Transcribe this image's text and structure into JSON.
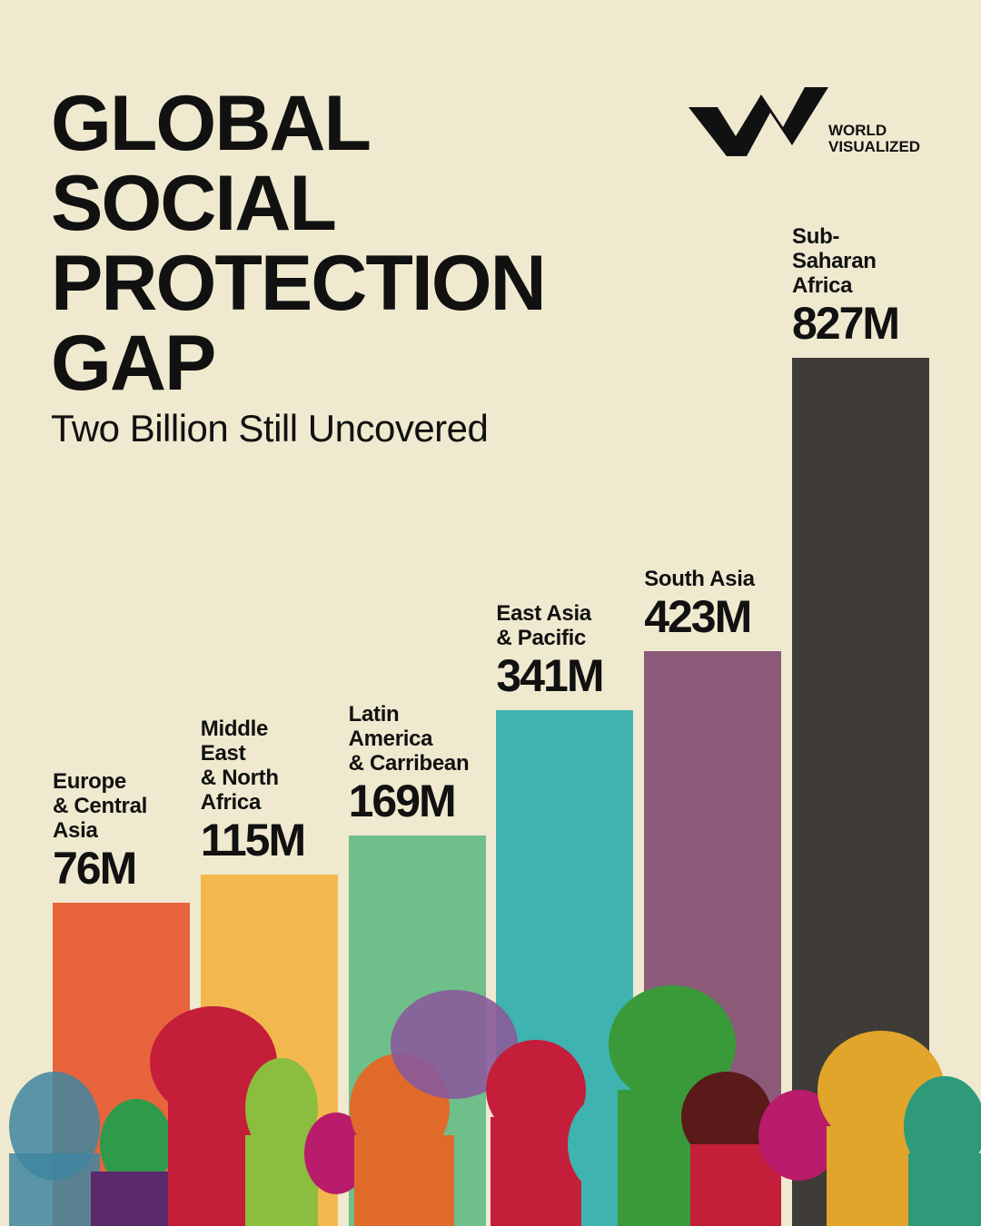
{
  "brand": "WORLD\nVISUALIZED",
  "chart_data": {
    "type": "bar",
    "title": "GLOBAL\nSOCIAL\nPROTECTION\nGAP",
    "subtitle": "Two Billion Still Uncovered",
    "categories": [
      "Europe\n& Central\nAsia",
      "Middle\nEast\n& North\nAfrica",
      "Latin\nAmerica\n& Carribean",
      "East Asia\n& Pacific",
      "South Asia",
      "Sub-\nSaharan\nAfrica"
    ],
    "values": [
      76,
      115,
      169,
      341,
      423,
      827
    ],
    "value_labels": [
      "76M",
      "115M",
      "169M",
      "341M",
      "423M",
      "827M"
    ],
    "colors": [
      "#e8643c",
      "#f2b84e",
      "#6fbf8a",
      "#3fb3b0",
      "#8a5a78",
      "#3f3b36"
    ]
  }
}
